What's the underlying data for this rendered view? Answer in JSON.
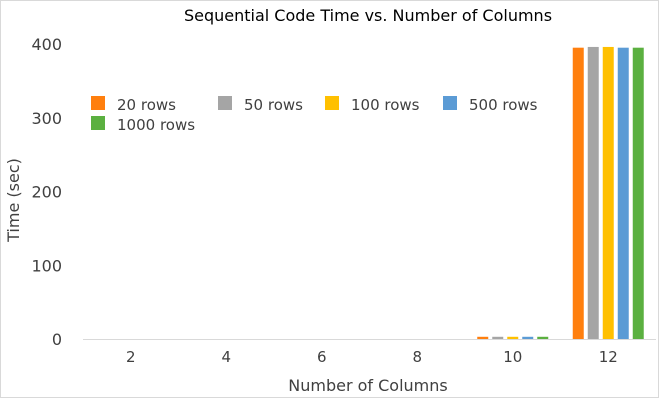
{
  "chart_data": {
    "type": "bar",
    "title": "Sequential Code Time vs. Number of Columns",
    "xlabel": "Number of Columns",
    "ylabel": "Time (sec)",
    "categories": [
      "2",
      "4",
      "6",
      "8",
      "10",
      "12"
    ],
    "ylim": [
      0,
      400
    ],
    "yticks": [
      0,
      100,
      200,
      300,
      400
    ],
    "grid": false,
    "legend_position": "top-left",
    "series": [
      {
        "name": "20 rows",
        "color": "#FF7F0E",
        "values": [
          0,
          0,
          0,
          0,
          3,
          395
        ]
      },
      {
        "name": "50 rows",
        "color": "#A5A5A5",
        "values": [
          0,
          0,
          0,
          0,
          3,
          396
        ]
      },
      {
        "name": "100 rows",
        "color": "#FFC000",
        "values": [
          0,
          0,
          0,
          0,
          3,
          396
        ]
      },
      {
        "name": "500 rows",
        "color": "#5B9BD5",
        "values": [
          0,
          0,
          0,
          0,
          3,
          395
        ]
      },
      {
        "name": "1000 rows",
        "color": "#5BB040",
        "values": [
          0,
          0,
          0,
          0,
          3,
          395
        ]
      }
    ]
  }
}
